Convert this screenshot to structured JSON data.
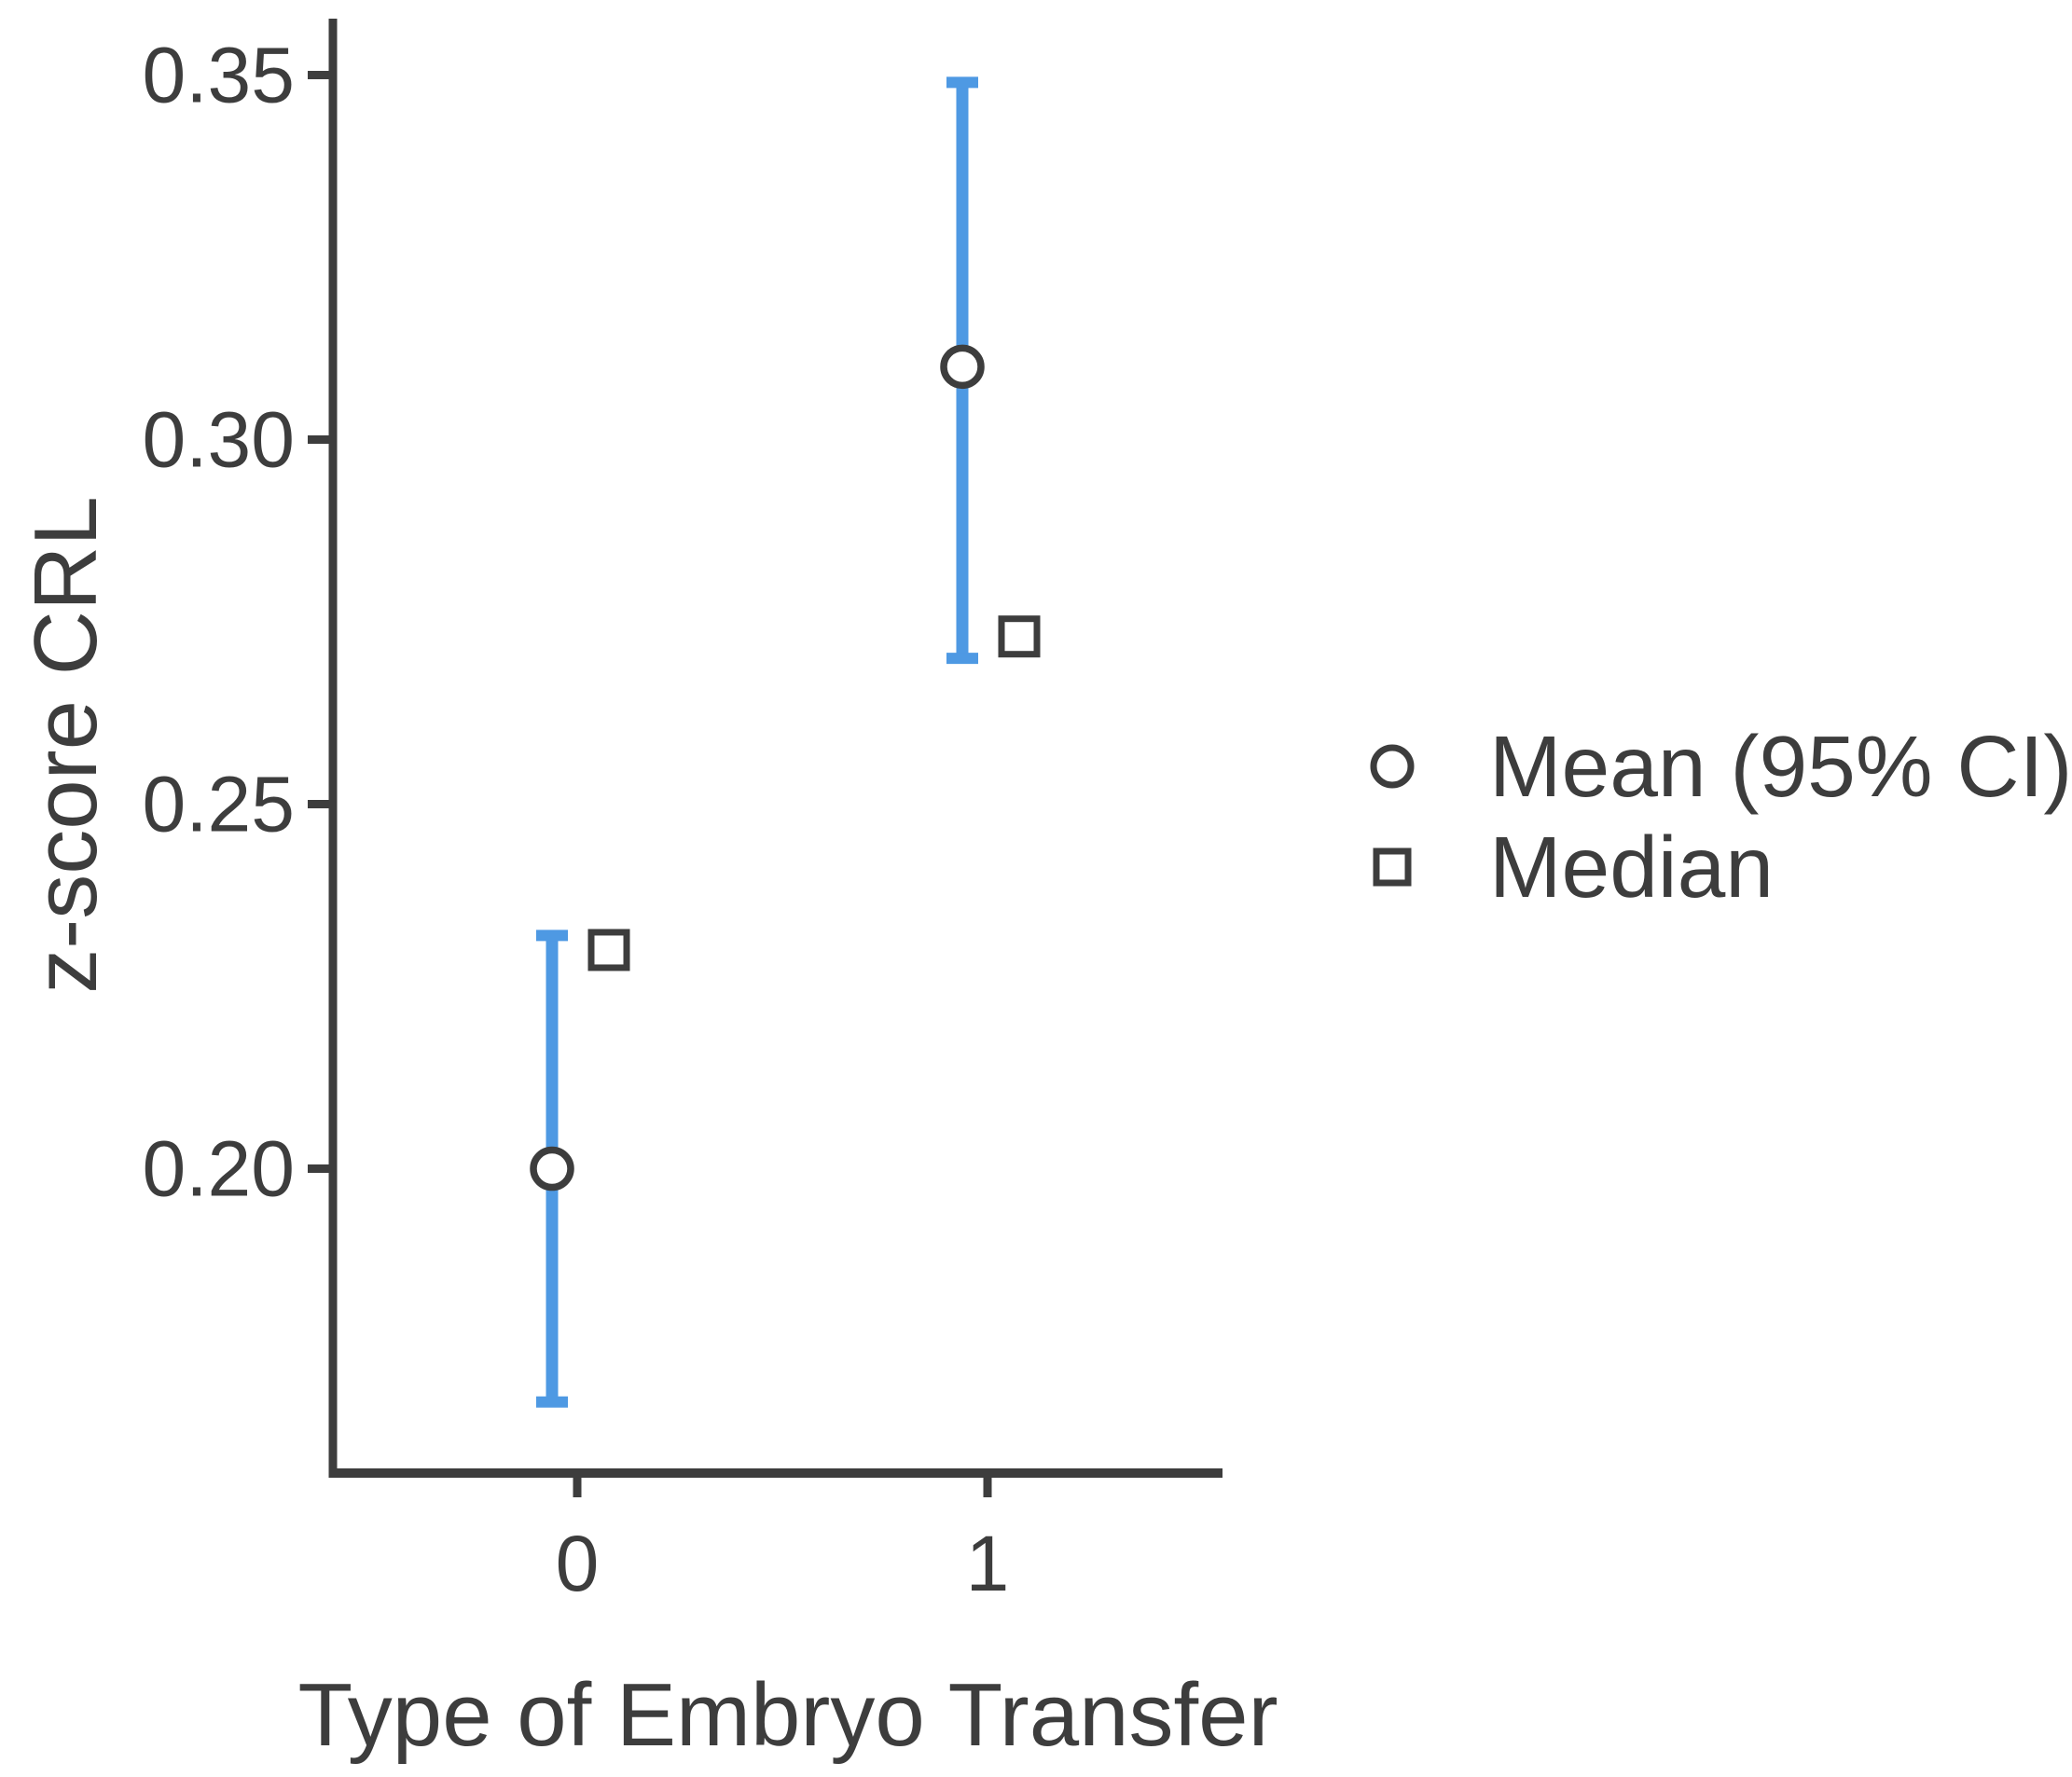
{
  "figure": {
    "background": "#ffffff"
  },
  "chart_data": {
    "type": "scatter",
    "title": "",
    "xlabel": "Type of Embryo Transfer",
    "ylabel": "z-score CRL",
    "categories": [
      "0",
      "1"
    ],
    "y_ticks": [
      0.2,
      0.25,
      0.3,
      0.35
    ],
    "ylim": [
      0.158,
      0.358
    ],
    "grid": false,
    "legend": {
      "position": "right",
      "entries": [
        {
          "marker": "circle",
          "label": "Mean (95% CI)"
        },
        {
          "marker": "square",
          "label": "Median"
        }
      ]
    },
    "series": [
      {
        "name": "Mean (95% CI)",
        "marker": "circle",
        "values": [
          {
            "category": "0",
            "mean": 0.2,
            "ci_low": 0.168,
            "ci_high": 0.232
          },
          {
            "category": "1",
            "mean": 0.31,
            "ci_low": 0.27,
            "ci_high": 0.349
          }
        ]
      },
      {
        "name": "Median",
        "marker": "square",
        "values": [
          {
            "category": "0",
            "median": 0.23
          },
          {
            "category": "1",
            "median": 0.273
          }
        ]
      }
    ],
    "colors": {
      "error_bar": "#4E99E3",
      "marker_stroke": "#3d3d3d",
      "marker_fill": "#ffffff",
      "axis": "#3d3d3d",
      "text": "#3d3d3d"
    }
  }
}
